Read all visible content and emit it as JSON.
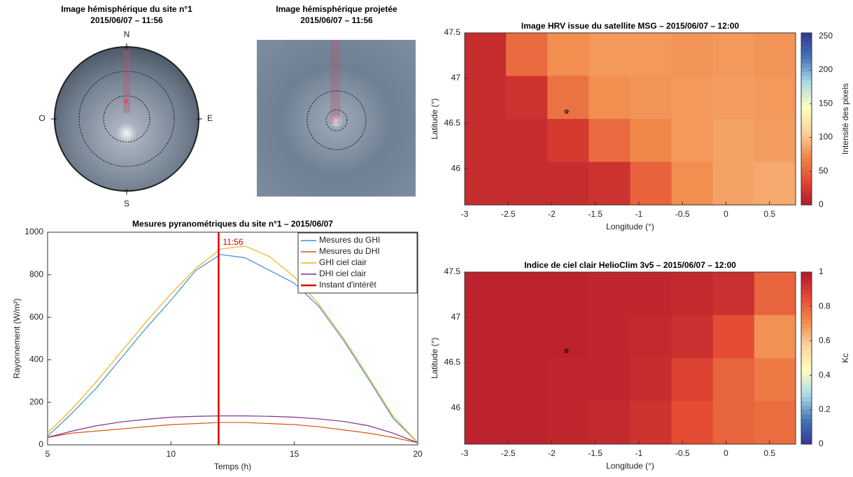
{
  "chart_data": [
    {
      "type": "image",
      "title": "Image hémisphérique du site n°1",
      "subtitle": "2015/06/07 – 11:56",
      "directions": [
        "N",
        "E",
        "S",
        "O"
      ]
    },
    {
      "type": "image",
      "title": "Image hémisphérique projetée",
      "subtitle": "2015/06/07 – 11:56"
    },
    {
      "type": "line",
      "title": "Mesures pyranométriques du site n°1 – 2015/06/07",
      "xlabel": "Temps (h)",
      "ylabel": "Rayonnement (W/m²)",
      "x": [
        5,
        6,
        7,
        8,
        9,
        10,
        11,
        12,
        13,
        14,
        15,
        16,
        17,
        18,
        19,
        20
      ],
      "series": [
        {
          "name": "Mesures du GHI",
          "color": "#3d8fd8",
          "values": [
            40,
            150,
            270,
            410,
            550,
            680,
            820,
            895,
            880,
            820,
            760,
            650,
            490,
            310,
            125,
            10
          ]
        },
        {
          "name": "Mesures du DHI",
          "color": "#d95319",
          "values": [
            35,
            55,
            65,
            75,
            85,
            95,
            100,
            105,
            105,
            100,
            95,
            85,
            70,
            55,
            35,
            10
          ]
        },
        {
          "name": "GHI ciel clair",
          "color": "#edb120",
          "values": [
            55,
            170,
            300,
            440,
            580,
            710,
            830,
            920,
            935,
            885,
            790,
            660,
            500,
            320,
            135,
            10
          ]
        },
        {
          "name": "DHI ciel clair",
          "color": "#7e2f8e",
          "values": [
            35,
            65,
            90,
            108,
            120,
            130,
            134,
            136,
            136,
            134,
            130,
            122,
            110,
            90,
            55,
            10
          ]
        }
      ],
      "marker_line": {
        "name": "Instant d'intérêt",
        "x": 11.93,
        "label": "11:56",
        "color": "#e00000"
      },
      "xlim": [
        5,
        20
      ],
      "xticks": [
        5,
        10,
        15,
        20
      ],
      "ylim": [
        0,
        1000
      ],
      "yticks": [
        0,
        200,
        400,
        600,
        800,
        1000
      ]
    },
    {
      "type": "heatmap",
      "title": "Image HRV issue du satellite MSG – 2015/06/07 – 12:00",
      "xlabel": "Longitude (°)",
      "ylabel": "Latitude (°)",
      "clabel": "Intensité des pixels",
      "xlim": [
        -3,
        0.8
      ],
      "xticks": [
        -3,
        -2.5,
        -2,
        -1.5,
        -1,
        -0.5,
        0,
        0.5
      ],
      "ylim": [
        45.6,
        47.5
      ],
      "yticks": [
        46,
        46.5,
        47,
        47.5
      ],
      "clim": [
        0,
        255
      ],
      "cticks": [
        0,
        50,
        100,
        150,
        200,
        250
      ],
      "colormap": [
        "#b2182b",
        "#e34a33",
        "#f08a4b",
        "#fdd49e",
        "#ffffbf",
        "#abd9e9",
        "#4575b4",
        "#313695"
      ],
      "marker": {
        "x": -1.83,
        "y": 46.63
      },
      "z": [
        [
          15,
          55,
          75,
          80,
          80,
          78,
          80,
          78
        ],
        [
          15,
          20,
          60,
          75,
          78,
          80,
          82,
          80
        ],
        [
          15,
          15,
          25,
          55,
          72,
          80,
          85,
          82
        ],
        [
          15,
          15,
          15,
          20,
          50,
          75,
          85,
          88
        ]
      ]
    },
    {
      "type": "heatmap",
      "title": "Indice de ciel clair HelioClim 3v5 – 2015/06/07 – 12:00",
      "xlabel": "Longitude (°)",
      "ylabel": "Latitude (°)",
      "clabel": "Kc",
      "xlim": [
        -3,
        0.8
      ],
      "xticks": [
        -3,
        -2.5,
        -2,
        -1.5,
        -1,
        -0.5,
        0,
        0.5
      ],
      "ylim": [
        45.6,
        47.5
      ],
      "yticks": [
        46,
        46.5,
        47,
        47.5
      ],
      "clim": [
        0,
        1
      ],
      "cticks": [
        0,
        0.2,
        0.4,
        0.6,
        0.8,
        1
      ],
      "colormap": [
        "#313695",
        "#4575b4",
        "#abd9e9",
        "#ffffbf",
        "#fdd49e",
        "#f08a4b",
        "#e34a33",
        "#b2182b"
      ],
      "marker": {
        "x": -1.83,
        "y": 46.63
      },
      "z": [
        [
          0.97,
          0.97,
          0.97,
          0.96,
          0.96,
          0.95,
          0.93,
          0.8
        ],
        [
          0.97,
          0.97,
          0.97,
          0.96,
          0.95,
          0.93,
          0.85,
          0.7
        ],
        [
          0.97,
          0.97,
          0.96,
          0.96,
          0.94,
          0.88,
          0.8,
          0.75
        ],
        [
          0.97,
          0.97,
          0.96,
          0.95,
          0.92,
          0.85,
          0.8,
          0.78
        ]
      ]
    }
  ]
}
